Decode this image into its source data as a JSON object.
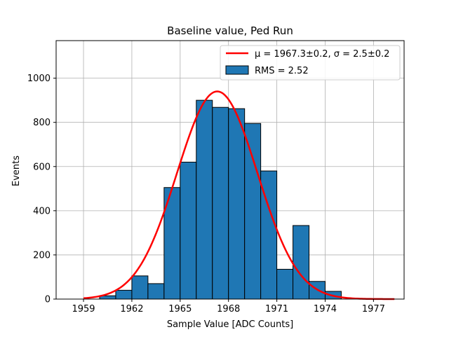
{
  "chart_data": {
    "type": "bar",
    "title": "Baseline value, Ped Run",
    "xlabel": "Sample Value [ADC Counts]",
    "ylabel": "Events",
    "xlim": [
      1957.3,
      1978.9
    ],
    "ylim": [
      0,
      1170
    ],
    "xticks": [
      1959,
      1962,
      1965,
      1968,
      1971,
      1974,
      1977
    ],
    "yticks": [
      0,
      200,
      400,
      600,
      800,
      1000
    ],
    "grid": true,
    "bin_width": 1,
    "bins": [
      {
        "left": 1960,
        "value": 15
      },
      {
        "left": 1961,
        "value": 40
      },
      {
        "left": 1962,
        "value": 105
      },
      {
        "left": 1963,
        "value": 70
      },
      {
        "left": 1964,
        "value": 505
      },
      {
        "left": 1965,
        "value": 620
      },
      {
        "left": 1966,
        "value": 900
      },
      {
        "left": 1967,
        "value": 868
      },
      {
        "left": 1968,
        "value": 862
      },
      {
        "left": 1969,
        "value": 795
      },
      {
        "left": 1970,
        "value": 580
      },
      {
        "left": 1971,
        "value": 135
      },
      {
        "left": 1972,
        "value": 333
      },
      {
        "left": 1973,
        "value": 80
      },
      {
        "left": 1974,
        "value": 35
      }
    ],
    "fit": {
      "type": "gaussian",
      "mu": 1967.3,
      "sigma": 2.5,
      "amplitude": 940,
      "x_range": [
        1959,
        1978.3
      ],
      "color": "#ff0000"
    },
    "bar_color": "#1f77b4",
    "legend": {
      "placement": "top-right",
      "entries": [
        {
          "label": "μ = 1967.3±0.2, σ = 2.5±0.2",
          "type": "line",
          "color": "#ff0000"
        },
        {
          "label": "RMS = 2.52",
          "type": "patch",
          "color": "#1f77b4"
        }
      ]
    }
  }
}
